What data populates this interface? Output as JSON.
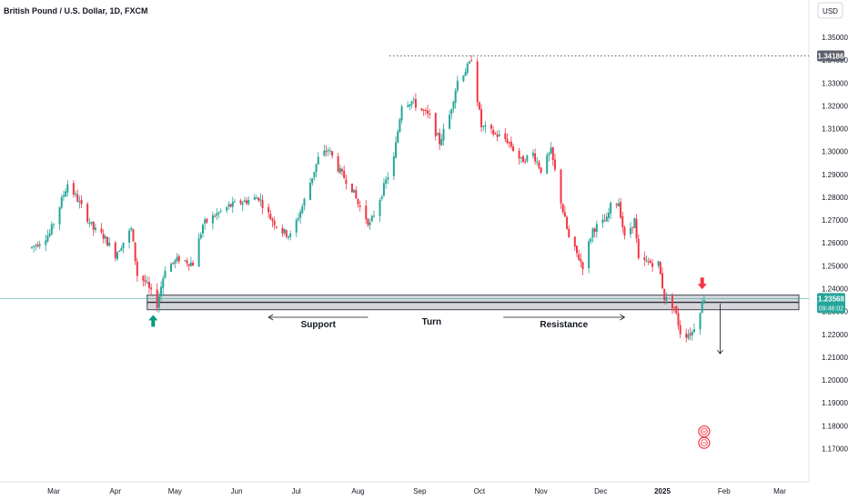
{
  "header": {
    "title": "British Pound / U.S. Dollar, 1D, FXCM",
    "currency_button": "USD"
  },
  "colors": {
    "up": "#26a69a",
    "down": "#f23645",
    "zone": "#5d606b",
    "accent_up": "#089981",
    "accent_down": "#f23645"
  },
  "chart_data": {
    "type": "candlestick",
    "symbol": "GBPUSD",
    "timeframe": "1D",
    "ylim": [
      1.163,
      1.356
    ],
    "y_ticks": [
      1.35,
      1.34,
      1.33,
      1.32,
      1.31,
      1.3,
      1.29,
      1.28,
      1.27,
      1.26,
      1.25,
      1.24,
      1.23,
      1.22,
      1.21,
      1.2,
      1.19,
      1.18,
      1.17
    ],
    "y_tick_labels": [
      "1.35000",
      "1.34000",
      "1.33000",
      "1.32000",
      "1.31000",
      "1.30000",
      "1.29000",
      "1.28000",
      "1.27000",
      "1.26000",
      "1.25000",
      "1.24000",
      "1.23000",
      "1.22000",
      "1.21000",
      "1.20000",
      "1.19000",
      "1.18000",
      "1.17000"
    ],
    "x_ticks": [
      {
        "label": "Mar",
        "date": "2024-03-01"
      },
      {
        "label": "Apr",
        "date": "2024-04-01"
      },
      {
        "label": "May",
        "date": "2024-05-01"
      },
      {
        "label": "Jun",
        "date": "2024-06-01"
      },
      {
        "label": "Jul",
        "date": "2024-07-01"
      },
      {
        "label": "Aug",
        "date": "2024-08-01"
      },
      {
        "label": "Sep",
        "date": "2024-09-01"
      },
      {
        "label": "Oct",
        "date": "2024-10-01"
      },
      {
        "label": "Nov",
        "date": "2024-11-01"
      },
      {
        "label": "Dec",
        "date": "2024-12-01"
      },
      {
        "label": "2025",
        "date": "2025-01-01"
      },
      {
        "label": "Feb",
        "date": "2025-02-01"
      },
      {
        "label": "Mar",
        "date": "2025-03-01"
      }
    ],
    "price_path": [
      [
        "2024-02-19",
        1.258
      ],
      [
        "2024-02-28",
        1.264
      ],
      [
        "2024-03-08",
        1.286
      ],
      [
        "2024-03-13",
        1.279
      ],
      [
        "2024-03-21",
        1.266
      ],
      [
        "2024-03-26",
        1.263
      ],
      [
        "2024-04-01",
        1.255
      ],
      [
        "2024-04-09",
        1.266
      ],
      [
        "2024-04-12",
        1.246
      ],
      [
        "2024-04-16",
        1.243
      ],
      [
        "2024-04-22",
        1.233
      ],
      [
        "2024-04-26",
        1.249
      ],
      [
        "2024-05-03",
        1.253
      ],
      [
        "2024-05-10",
        1.251
      ],
      [
        "2024-05-15",
        1.268
      ],
      [
        "2024-05-21",
        1.272
      ],
      [
        "2024-05-28",
        1.276
      ],
      [
        "2024-06-04",
        1.278
      ],
      [
        "2024-06-12",
        1.28
      ],
      [
        "2024-06-18",
        1.271
      ],
      [
        "2024-06-24",
        1.265
      ],
      [
        "2024-06-28",
        1.263
      ],
      [
        "2024-07-04",
        1.276
      ],
      [
        "2024-07-12",
        1.297
      ],
      [
        "2024-07-17",
        1.301
      ],
      [
        "2024-07-23",
        1.291
      ],
      [
        "2024-07-29",
        1.284
      ],
      [
        "2024-08-01",
        1.277
      ],
      [
        "2024-08-07",
        1.268
      ],
      [
        "2024-08-13",
        1.282
      ],
      [
        "2024-08-19",
        1.297
      ],
      [
        "2024-08-23",
        1.321
      ],
      [
        "2024-08-28",
        1.322
      ],
      [
        "2024-09-06",
        1.315
      ],
      [
        "2024-09-11",
        1.304
      ],
      [
        "2024-09-16",
        1.316
      ],
      [
        "2024-09-20",
        1.331
      ],
      [
        "2024-09-26",
        1.338
      ],
      [
        "2024-09-27",
        1.341
      ],
      [
        "2024-10-02",
        1.311
      ],
      [
        "2024-10-08",
        1.308
      ],
      [
        "2024-10-15",
        1.305
      ],
      [
        "2024-10-22",
        1.296
      ],
      [
        "2024-10-28",
        1.299
      ],
      [
        "2024-11-01",
        1.292
      ],
      [
        "2024-11-06",
        1.3
      ],
      [
        "2024-11-12",
        1.274
      ],
      [
        "2024-11-15",
        1.262
      ],
      [
        "2024-11-22",
        1.25
      ],
      [
        "2024-11-27",
        1.266
      ],
      [
        "2024-12-04",
        1.27
      ],
      [
        "2024-12-06",
        1.276
      ],
      [
        "2024-12-10",
        1.278
      ],
      [
        "2024-12-13",
        1.262
      ],
      [
        "2024-12-18",
        1.27
      ],
      [
        "2024-12-20",
        1.252
      ],
      [
        "2024-12-30",
        1.251
      ],
      [
        "2025-01-02",
        1.236
      ],
      [
        "2025-01-07",
        1.232
      ],
      [
        "2025-01-10",
        1.221
      ],
      [
        "2025-01-13",
        1.22
      ],
      [
        "2025-01-16",
        1.221
      ],
      [
        "2025-01-20",
        1.231
      ],
      [
        "2025-01-22",
        1.236
      ]
    ],
    "reference_line": {
      "value": 1.34186,
      "label": "1.34186",
      "style": "dotted"
    },
    "current_price": {
      "value": 1.23568,
      "label": "1.23568",
      "countdown": "09:46:02"
    },
    "zone": {
      "from": 1.232,
      "to": 1.236
    },
    "annotations": [
      {
        "text": "Support",
        "date_from": "2024-06-17",
        "date_to": "2024-08-06"
      },
      {
        "text": "Turn",
        "date": "2024-09-07"
      },
      {
        "text": "Resistance",
        "date_from": "2024-10-13",
        "date_to": "2024-12-13"
      }
    ],
    "arrows": [
      {
        "kind": "up",
        "date": "2024-04-20",
        "price": 1.2285
      },
      {
        "kind": "down",
        "date": "2025-01-21",
        "price": 1.2397
      },
      {
        "kind": "projection",
        "date": "2025-01-30",
        "from": 1.2335,
        "to": 1.2115
      }
    ],
    "badges": [
      {
        "label": "GBP",
        "date": "2025-01-22",
        "price": 1.1775
      },
      {
        "label": "USD",
        "date": "2025-01-22",
        "price": 1.1725
      }
    ]
  }
}
